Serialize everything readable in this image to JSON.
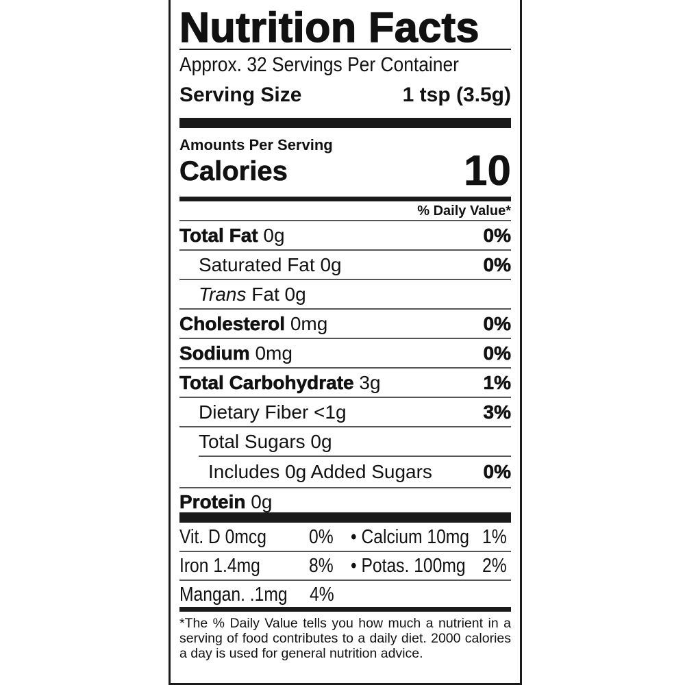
{
  "title": "Nutrition Facts",
  "servings_per_container": "Approx. 32 Servings Per Container",
  "serving_size": {
    "label": "Serving Size",
    "value": "1 tsp (3.5g)"
  },
  "amounts_per_serving": "Amounts Per Serving",
  "calories": {
    "label": "Calories",
    "value": "10"
  },
  "daily_value_header": "% Daily Value*",
  "nutrients": [
    {
      "name": "Total Fat",
      "amount": "0g",
      "dv": "0%"
    },
    {
      "name": "Saturated Fat",
      "amount": "0g",
      "dv": "0%"
    },
    {
      "name": "Trans",
      "name_suffix": "Fat",
      "amount": "0g",
      "dv": ""
    },
    {
      "name": "Cholesterol",
      "amount": "0mg",
      "dv": "0%"
    },
    {
      "name": "Sodium",
      "amount": "0mg",
      "dv": "0%"
    },
    {
      "name": "Total Carbohydrate",
      "amount": "3g",
      "dv": "1%"
    },
    {
      "name": "Dietary Fiber",
      "amount": "<1g",
      "dv": "3%"
    },
    {
      "name": "Total Sugars",
      "amount": "0g",
      "dv": ""
    },
    {
      "name": "Includes 0g Added Sugars",
      "amount": "",
      "dv": "0%"
    },
    {
      "name": "Protein",
      "amount": "0g",
      "dv": ""
    }
  ],
  "vitamins": [
    {
      "left": "Vit. D 0mcg",
      "left_dv": "0%",
      "right": "• Calcium 10mg",
      "right_dv": "1%"
    },
    {
      "left": "Iron 1.4mg",
      "left_dv": "8%",
      "right": "• Potas. 100mg",
      "right_dv": "2%"
    },
    {
      "left": "Mangan. .1mg",
      "left_dv": "4%",
      "right": "",
      "right_dv": ""
    }
  ],
  "footnote": "*The % Daily Value tells you how much a nutrient in a serving of food contributes to a daily diet. 2000 calories a day is used for general nutrition advice."
}
